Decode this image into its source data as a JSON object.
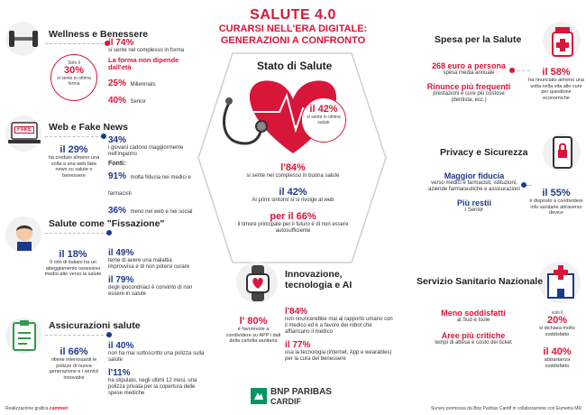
{
  "header": {
    "title": "SALUTE 4.0",
    "subtitle_line1": "CURARSI NELL'ERA DIGITALE:",
    "subtitle_line2": "GENERAZIONI A CONFRONTO"
  },
  "wellness": {
    "title": "Wellness e Benessere",
    "circle_top": "Solo il",
    "circle_value": "30%",
    "circle_text": "si sente in ottima forma",
    "stat1_value": "il 74%",
    "stat1_text": "si sente nel complesso in forma",
    "highlight": "La forma non dipende dall'età",
    "stat2_value": "25%",
    "stat2_text": "Millennials",
    "stat3_value": "40%",
    "stat3_text": "Senior"
  },
  "fake": {
    "title": "Web e Fake News",
    "icon_label": "FAKE",
    "circle_value": "il 29%",
    "circle_text": "ha creduto almeno una volta a una web fake news su salute e benessere",
    "stat1_value": "34%",
    "stat1_text": "i giovani cadono maggiormente nell'inganno",
    "sources_label": "Fonti:",
    "stat2_value": "91%",
    "stat2_text": "molta fiducia nei medici e farmacisti",
    "stat3_value": "36%",
    "stat3_text": "meno nel web e nei social"
  },
  "fissazione": {
    "title": "Salute come \"Fissazione\"",
    "circle_value": "il 18%",
    "circle_text": "9 mln di italiani ha un atteggiamento ossessivo medio-alto verso la salute",
    "stat1_value": "il 49%",
    "stat1_text": "teme di avere una malattia improvvisa e di non potersi curare",
    "stat2_value": "il 79%",
    "stat2_text": "degli ipocondriaci è convinto di non essere in salute"
  },
  "assicurazioni": {
    "title": "Assicurazioni salute",
    "circle_value": "il 66%",
    "circle_text": "ritiene interessanti le polizze di nuova generazione e i servizi innovativi",
    "stat1_value": "il 40%",
    "stat1_text": "non ha mai sottoscritto una polizza sulla salute",
    "stat2_value": "l'11%",
    "stat2_text": "ha stipulato, negli ultimi 12 mesi, una polizza privata per la copertura delle spese mediche"
  },
  "stato": {
    "title": "Stato di Salute",
    "circle_value": "il 42%",
    "circle_text": "si sente in ottima salute",
    "stat1_value": "l'84%",
    "stat1_text": "si sente nel complesso in buona salute",
    "stat2_value": "il 42%",
    "stat2_text": "Ai primi sintomi si si rivolge al web",
    "stat3_value": "per il 66%",
    "stat3_text": "il timore principale per il futuro è di non essere autosufficiente"
  },
  "innovazione": {
    "title": "Innovazione, tecnologia e AI",
    "circle_value": "l' 80%",
    "circle_text": "è favorevole a condividere su APP i dati della cartella sanitaria",
    "stat1_value": "l'84%",
    "stat1_text": "non rinuncerebbe mai al rapporto umano con il medico ed è a favore dei robot che affiancano il medico",
    "stat2_value": "il 77%",
    "stat2_text": "usa la tecnologia (internet, App e wearables) per la cura del benessere"
  },
  "spesa": {
    "title": "Spesa per la Salute",
    "stat1_value": "268 euro a persona",
    "stat1_text": "spesa media annuale",
    "stat2_value": "Rinunce più frequenti",
    "stat2_text": "prestazioni e cure più costose (dentista, ecc.)",
    "circle_value": "il 58%",
    "circle_text": "ha rinunciato almeno una volta nella vita alle cure per questione economiche"
  },
  "privacy": {
    "title": "Privacy e Sicurezza",
    "stat1_value": "Maggior fiducia",
    "stat1_text": "verso medici e farmacisti, istituzioni, aziende farmaceutiche e assicurazioni",
    "stat2_value": "Più restii",
    "stat2_text": "i Senior",
    "circle_value": "il 55%",
    "circle_text": "è disposto a condividere info sanitarie attraverso device"
  },
  "ssn": {
    "title": "Servizio Sanitario Nazionale",
    "stat1_value": "Meno soddisfatti",
    "stat1_text": "al Sud e Isole",
    "stat2_value": "Aree più critiche",
    "stat2_text": "tempi di attesa e costo dei ticket",
    "circle1_top": "solo il",
    "circle1_value": "20%",
    "circle1_text": "si dichiara molto soddisfatto",
    "circle2_value": "il 40%",
    "circle2_text": "abbastanza soddisfatto"
  },
  "footer": {
    "credit_prefix": "Realizzazione grafica",
    "credit_brand": "cammeri",
    "brand_name": "BNP PARIBAS",
    "brand_sub": "CARDIF",
    "survey": "Survey promossa da Bnp Paribas Cardif in collaborazione con Eumetra MR"
  },
  "colors": {
    "accent_red": "#d7163a",
    "accent_blue": "#1d3a8a",
    "brand_green": "#00965e"
  }
}
